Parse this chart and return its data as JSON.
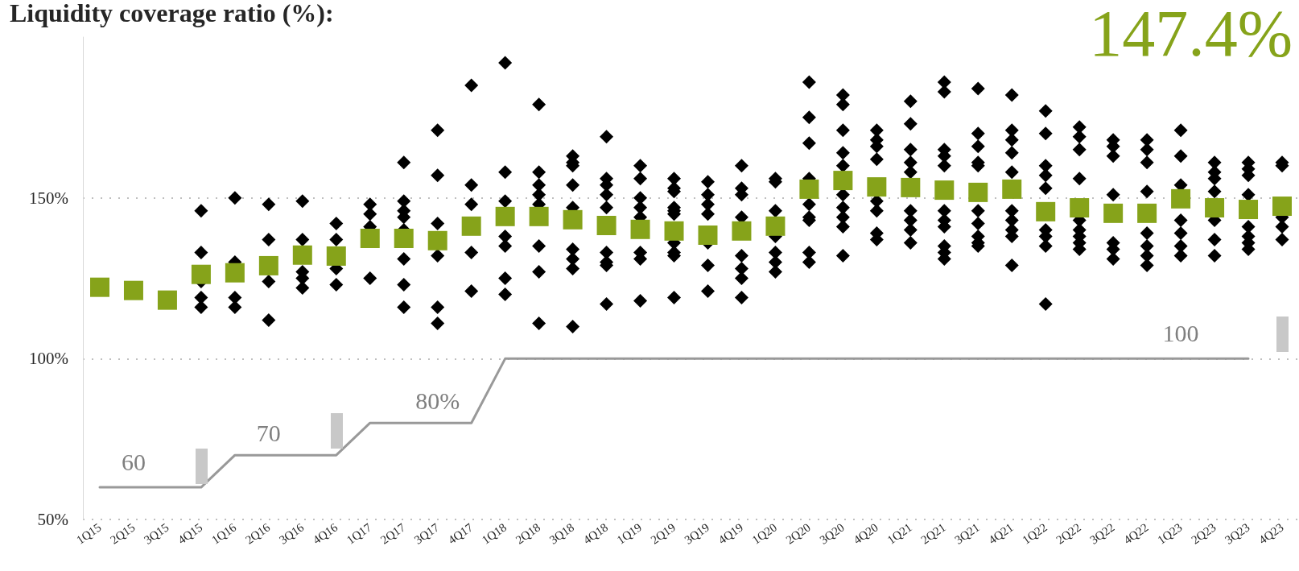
{
  "chart_data": {
    "type": "scatter",
    "title": "Liquidity coverage ratio (%):",
    "categories": [
      "1Q15",
      "2Q15",
      "3Q15",
      "4Q15",
      "1Q16",
      "2Q16",
      "3Q16",
      "4Q16",
      "1Q17",
      "2Q17",
      "3Q17",
      "4Q17",
      "1Q18",
      "2Q18",
      "3Q18",
      "4Q18",
      "1Q19",
      "2Q19",
      "3Q19",
      "4Q19",
      "1Q20",
      "2Q20",
      "3Q20",
      "4Q20",
      "1Q21",
      "2Q21",
      "3Q21",
      "4Q21",
      "1Q22",
      "2Q22",
      "3Q22",
      "4Q22",
      "1Q23",
      "2Q23",
      "3Q23",
      "4Q23"
    ],
    "ylim": [
      50,
      200
    ],
    "yticks": [
      {
        "value": 50,
        "label": "50%"
      },
      {
        "value": 100,
        "label": "100%"
      },
      {
        "value": 150,
        "label": "150%"
      }
    ],
    "grid": "y",
    "series": [
      {
        "type": "line",
        "color": "#999999",
        "marker": "none",
        "values": [
          60,
          60,
          60,
          60,
          70,
          70,
          70,
          70,
          80,
          80,
          80,
          80,
          100,
          100,
          100,
          100,
          100,
          100,
          100,
          100,
          100,
          100,
          100,
          100,
          100,
          100,
          100,
          100,
          100,
          100,
          100,
          100,
          100,
          100,
          100,
          null
        ]
      },
      {
        "color": "#000000",
        "marker": "diamond",
        "x": [
          "4Q15",
          "4Q15",
          "4Q15",
          "4Q15",
          "4Q15",
          "1Q16",
          "1Q16",
          "1Q16",
          "1Q16",
          "2Q16",
          "2Q16",
          "2Q16",
          "2Q16",
          "3Q16",
          "3Q16",
          "3Q16",
          "3Q16",
          "3Q16",
          "4Q16",
          "4Q16",
          "4Q16",
          "4Q16",
          "1Q17",
          "1Q17",
          "1Q17",
          "1Q17",
          "2Q17",
          "2Q17",
          "2Q17",
          "2Q17",
          "2Q17",
          "2Q17",
          "2Q17",
          "2Q17",
          "3Q17",
          "3Q17",
          "3Q17",
          "3Q17",
          "3Q17",
          "3Q17",
          "4Q17",
          "4Q17",
          "4Q17",
          "4Q17",
          "4Q17",
          "1Q18",
          "1Q18",
          "1Q18",
          "1Q18",
          "1Q18",
          "1Q18",
          "1Q18",
          "2Q18",
          "2Q18",
          "2Q18",
          "2Q18",
          "2Q18",
          "2Q18",
          "2Q18",
          "2Q18",
          "3Q18",
          "3Q18",
          "3Q18",
          "3Q18",
          "3Q18",
          "3Q18",
          "3Q18",
          "3Q18",
          "3Q18",
          "4Q18",
          "4Q18",
          "4Q18",
          "4Q18",
          "4Q18",
          "4Q18",
          "4Q18",
          "4Q18",
          "4Q18",
          "1Q19",
          "1Q19",
          "1Q19",
          "1Q19",
          "1Q19",
          "1Q19",
          "1Q19",
          "1Q19",
          "2Q19",
          "2Q19",
          "2Q19",
          "2Q19",
          "2Q19",
          "2Q19",
          "2Q19",
          "2Q19",
          "2Q19",
          "2Q19",
          "3Q19",
          "3Q19",
          "3Q19",
          "3Q19",
          "3Q19",
          "3Q19",
          "3Q19",
          "4Q19",
          "4Q19",
          "4Q19",
          "4Q19",
          "4Q19",
          "4Q19",
          "4Q19",
          "4Q19",
          "1Q20",
          "1Q20",
          "1Q20",
          "1Q20",
          "1Q20",
          "1Q20",
          "1Q20",
          "2Q20",
          "2Q20",
          "2Q20",
          "2Q20",
          "2Q20",
          "2Q20",
          "2Q20",
          "2Q20",
          "2Q20",
          "3Q20",
          "3Q20",
          "3Q20",
          "3Q20",
          "3Q20",
          "3Q20",
          "3Q20",
          "3Q20",
          "3Q20",
          "3Q20",
          "4Q20",
          "4Q20",
          "4Q20",
          "4Q20",
          "4Q20",
          "4Q20",
          "4Q20",
          "4Q20",
          "1Q21",
          "1Q21",
          "1Q21",
          "1Q21",
          "1Q21",
          "1Q21",
          "1Q21",
          "1Q21",
          "1Q21",
          "2Q21",
          "2Q21",
          "2Q21",
          "2Q21",
          "2Q21",
          "2Q21",
          "2Q21",
          "2Q21",
          "2Q21",
          "2Q21",
          "2Q21",
          "3Q21",
          "3Q21",
          "3Q21",
          "3Q21",
          "3Q21",
          "3Q21",
          "3Q21",
          "3Q21",
          "3Q21",
          "3Q21",
          "4Q21",
          "4Q21",
          "4Q21",
          "4Q21",
          "4Q21",
          "4Q21",
          "4Q21",
          "4Q21",
          "4Q21",
          "4Q21",
          "1Q22",
          "1Q22",
          "1Q22",
          "1Q22",
          "1Q22",
          "1Q22",
          "1Q22",
          "1Q22",
          "1Q22",
          "2Q22",
          "2Q22",
          "2Q22",
          "2Q22",
          "2Q22",
          "2Q22",
          "2Q22",
          "2Q22",
          "2Q22",
          "3Q22",
          "3Q22",
          "3Q22",
          "3Q22",
          "3Q22",
          "3Q22",
          "3Q22",
          "3Q22",
          "4Q22",
          "4Q22",
          "4Q22",
          "4Q22",
          "4Q22",
          "4Q22",
          "4Q22",
          "4Q22",
          "4Q22",
          "1Q23",
          "1Q23",
          "1Q23",
          "1Q23",
          "1Q23",
          "1Q23",
          "1Q23",
          "2Q23",
          "2Q23",
          "2Q23",
          "2Q23",
          "2Q23",
          "2Q23",
          "2Q23",
          "3Q23",
          "3Q23",
          "3Q23",
          "3Q23",
          "3Q23",
          "3Q23",
          "3Q23",
          "3Q23",
          "4Q23",
          "4Q23",
          "4Q23",
          "4Q23",
          "4Q23"
        ],
        "values": [
          146,
          133,
          124,
          119,
          116,
          150,
          130,
          119,
          116,
          148,
          137,
          124,
          112,
          149,
          137,
          127,
          125,
          122,
          142,
          137,
          128,
          123,
          148,
          145,
          141,
          125,
          161,
          149,
          146,
          144,
          140,
          131,
          123,
          116,
          171,
          157,
          142,
          132,
          116,
          111,
          185,
          154,
          148,
          133,
          121,
          192,
          158,
          149,
          138,
          135,
          125,
          120,
          179,
          158,
          154,
          151,
          148,
          135,
          127,
          111,
          163,
          161,
          160,
          154,
          147,
          134,
          131,
          128,
          110,
          169,
          156,
          154,
          151,
          147,
          133,
          130,
          129,
          117,
          160,
          156,
          150,
          147,
          144,
          133,
          131,
          118,
          156,
          153,
          152,
          147,
          146,
          145,
          136,
          133,
          132,
          119,
          155,
          151,
          148,
          145,
          136,
          129,
          121,
          160,
          153,
          151,
          144,
          132,
          128,
          125,
          119,
          156,
          155,
          146,
          138,
          133,
          130,
          127,
          186,
          175,
          167,
          156,
          148,
          144,
          143,
          133,
          130,
          182,
          179,
          171,
          164,
          160,
          151,
          147,
          144,
          141,
          132,
          171,
          168,
          166,
          162,
          149,
          146,
          139,
          137,
          180,
          173,
          165,
          161,
          158,
          146,
          143,
          140,
          136,
          186,
          183,
          165,
          163,
          160,
          146,
          143,
          141,
          135,
          133,
          131,
          184,
          170,
          166,
          161,
          160,
          146,
          142,
          138,
          136,
          135,
          182,
          171,
          168,
          164,
          158,
          146,
          143,
          140,
          138,
          129,
          177,
          170,
          160,
          157,
          153,
          140,
          138,
          135,
          117,
          172,
          169,
          165,
          156,
          143,
          140,
          138,
          136,
          134,
          168,
          166,
          163,
          151,
          null,
          136,
          134,
          131,
          168,
          165,
          161,
          152,
          null,
          139,
          135,
          132,
          129,
          171,
          163,
          154,
          143,
          139,
          135,
          132,
          161,
          158,
          156,
          152,
          143,
          137,
          132,
          161,
          159,
          157,
          151,
          141,
          138,
          136,
          134,
          161,
          160,
          144,
          141,
          137
        ]
      },
      {
        "color": "#86a31a",
        "marker": "square",
        "values": [
          122.2,
          121.2,
          118.2,
          126.2,
          126.7,
          128.9,
          132.2,
          131.9,
          137.4,
          137.4,
          136.7,
          141.2,
          144.2,
          144.2,
          143.2,
          141.4,
          140.2,
          139.7,
          138.4,
          139.7,
          141.2,
          152.7,
          155.4,
          153.4,
          153.2,
          152.4,
          151.7,
          152.7,
          145.7,
          146.9,
          145.2,
          145.2,
          149.7,
          146.9,
          146.4,
          147.4
        ]
      }
    ],
    "annotations": [
      "147.4%",
      "60",
      "70",
      "80%",
      "100"
    ]
  }
}
